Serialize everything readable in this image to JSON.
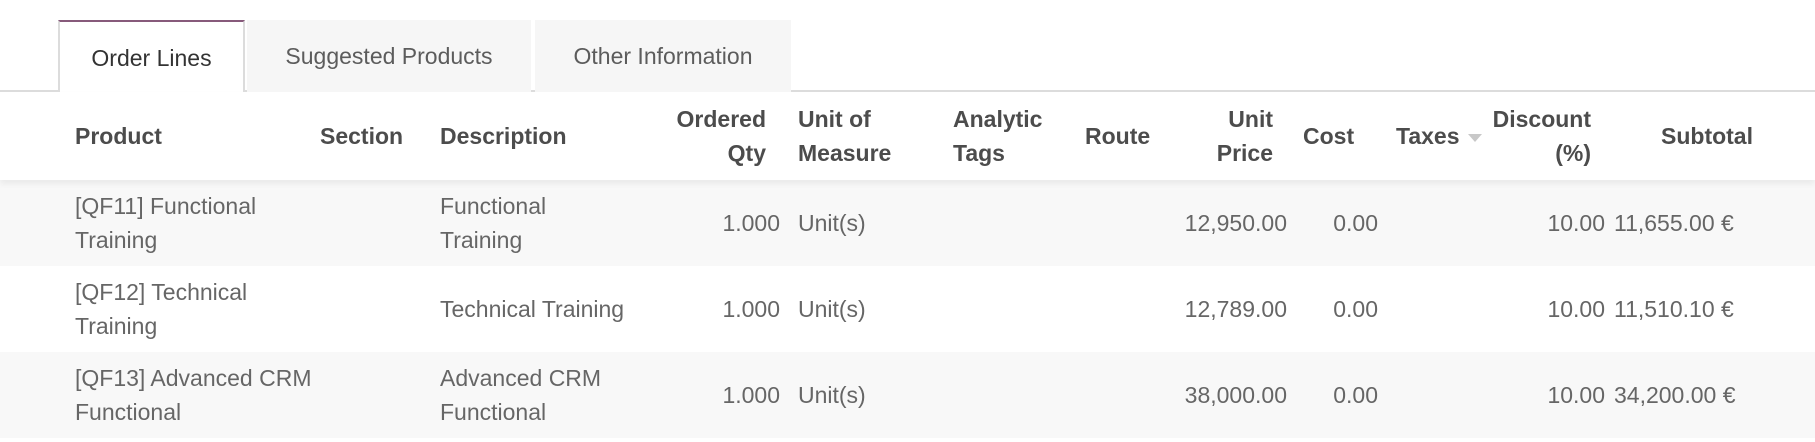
{
  "tabs": [
    {
      "label": "Order Lines",
      "active": true
    },
    {
      "label": "Suggested Products"
    },
    {
      "label": "Other Information"
    }
  ],
  "accent_color": "#875a7b",
  "columns": {
    "product": "Product",
    "section": "Section",
    "description": "Description",
    "ordered_qty": [
      "Ordered",
      "Qty"
    ],
    "uom": [
      "Unit of",
      "Measure"
    ],
    "analytic_tags": [
      "Analytic",
      "Tags"
    ],
    "route": "Route",
    "unit_price": [
      "Unit",
      "Price"
    ],
    "cost": "Cost",
    "taxes": "Taxes",
    "taxes_sort_icon": "caret-down-icon",
    "discount": [
      "Discount",
      "(%)"
    ],
    "subtotal": "Subtotal"
  },
  "rows": [
    {
      "product": "[QF11] Functional Training",
      "section": "",
      "description": "Functional Training",
      "qty": "1.000",
      "uom": "Unit(s)",
      "analytic_tags": "",
      "route": "",
      "unit_price": "12,950.00",
      "cost": "0.00",
      "taxes": "",
      "discount": "10.00",
      "subtotal": "11,655.00 €"
    },
    {
      "product": "[QF12] Technical Training",
      "section": "",
      "description": "Technical Training",
      "qty": "1.000",
      "uom": "Unit(s)",
      "analytic_tags": "",
      "route": "",
      "unit_price": "12,789.00",
      "cost": "0.00",
      "taxes": "",
      "discount": "10.00",
      "subtotal": "11,510.10 €"
    },
    {
      "product": "[QF13] Advanced CRM Functional",
      "section": "",
      "description": "Advanced CRM Functional",
      "qty": "1.000",
      "uom": "Unit(s)",
      "analytic_tags": "",
      "route": "",
      "unit_price": "38,000.00",
      "cost": "0.00",
      "taxes": "",
      "discount": "10.00",
      "subtotal": "34,200.00 €"
    }
  ]
}
